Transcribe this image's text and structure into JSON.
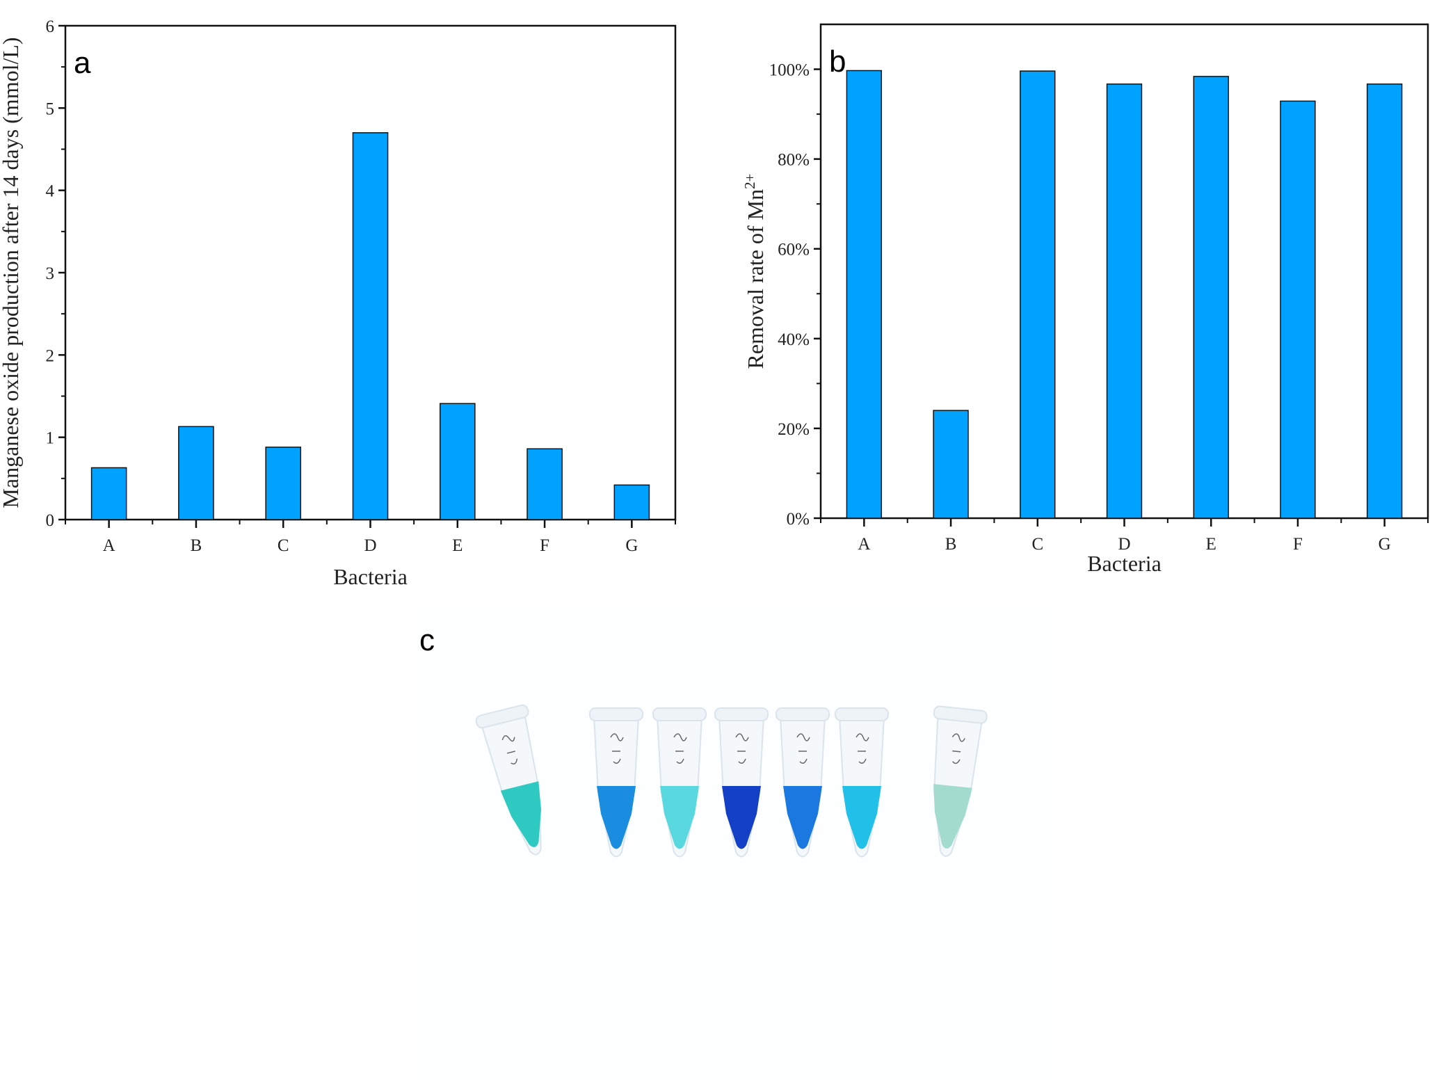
{
  "chart_data": [
    {
      "type": "bar",
      "panel_label": "a",
      "categories": [
        "A",
        "B",
        "C",
        "D",
        "E",
        "F",
        "G"
      ],
      "values": [
        0.63,
        1.13,
        0.88,
        4.7,
        1.41,
        0.86,
        0.42
      ],
      "xlabel": "Bacteria",
      "ylabel": "Manganese oxide production after 14 days (mmol/L)",
      "ylim": [
        0,
        6
      ],
      "yticks": [
        "0",
        "1",
        "2",
        "3",
        "4",
        "5",
        "6"
      ],
      "grid": false,
      "bar_color": "#00a2ff"
    },
    {
      "type": "bar",
      "panel_label": "b",
      "categories": [
        "A",
        "B",
        "C",
        "D",
        "E",
        "F",
        "G"
      ],
      "values": [
        99.7,
        24.0,
        99.6,
        96.7,
        98.4,
        92.9,
        96.7
      ],
      "xlabel": "Bacteria",
      "ylabel": "Removal rate of Mn",
      "ylabel_superscript": "2+",
      "ylim": [
        0,
        110
      ],
      "yticks": [
        "0%",
        "20%",
        "40%",
        "60%",
        "80%",
        "100%"
      ],
      "grid": false,
      "bar_color": "#00a2ff"
    }
  ],
  "photo": {
    "panel_label": "c",
    "tube_colors": [
      "#2ec9c0",
      "#1a8de0",
      "#5ad8e0",
      "#1440c8",
      "#1a78e0",
      "#20c0e8",
      "#a3dccf"
    ]
  }
}
